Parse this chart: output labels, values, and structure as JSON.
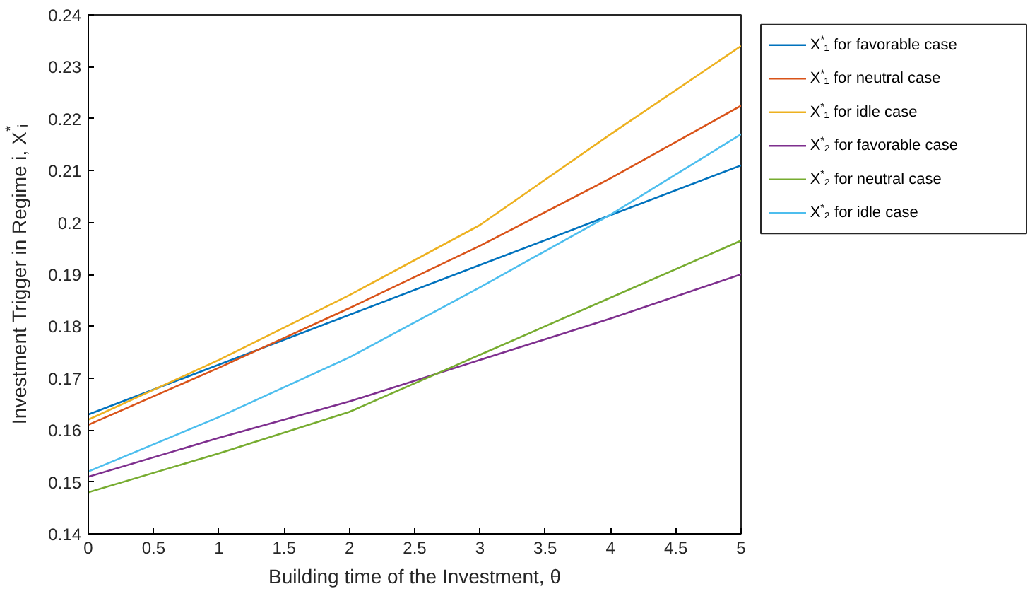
{
  "chart_data": {
    "type": "line",
    "xlabel": "Building time of the Investment, θ",
    "ylabel": "Investment Trigger in Regime i, X$^{*}$ᵢ",
    "x": [
      0,
      1,
      2,
      3,
      4,
      5
    ],
    "series": [
      {
        "name": "X$^{*}$₁ for favorable case",
        "color": "#0072bd",
        "values": [
          0.163,
          0.1726,
          0.1822,
          0.1918,
          0.2014,
          0.211
        ]
      },
      {
        "name": "X$^{*}$₁ for neutral case",
        "color": "#d95319",
        "values": [
          0.161,
          0.172,
          0.1835,
          0.1955,
          0.2085,
          0.2225
        ]
      },
      {
        "name": "X$^{*}$₁ for idle case",
        "color": "#edb120",
        "values": [
          0.162,
          0.1735,
          0.186,
          0.1995,
          0.217,
          0.234
        ]
      },
      {
        "name": "X$^{*}$₂ for favorable case",
        "color": "#7e2f8e",
        "values": [
          0.151,
          0.1585,
          0.1655,
          0.1735,
          0.1815,
          0.19
        ]
      },
      {
        "name": "X$^{*}$₂ for neutral case",
        "color": "#77ac30",
        "values": [
          0.148,
          0.1555,
          0.1635,
          0.1745,
          0.1855,
          0.1965
        ]
      },
      {
        "name": "X$^{*}$₂ for idle case",
        "color": "#4dbeee",
        "values": [
          0.152,
          0.1625,
          0.174,
          0.1875,
          0.2015,
          0.217
        ]
      }
    ],
    "xlim": [
      0,
      5
    ],
    "ylim": [
      0.14,
      0.24
    ],
    "xticks": [
      0,
      0.5,
      1,
      1.5,
      2,
      2.5,
      3,
      3.5,
      4,
      4.5,
      5
    ],
    "yticks": [
      0.14,
      0.15,
      0.16,
      0.17,
      0.18,
      0.19,
      0.2,
      0.21,
      0.22,
      0.23,
      0.24
    ],
    "grid": false,
    "legend": "top right",
    "marker": "none",
    "line_style": "solid"
  }
}
